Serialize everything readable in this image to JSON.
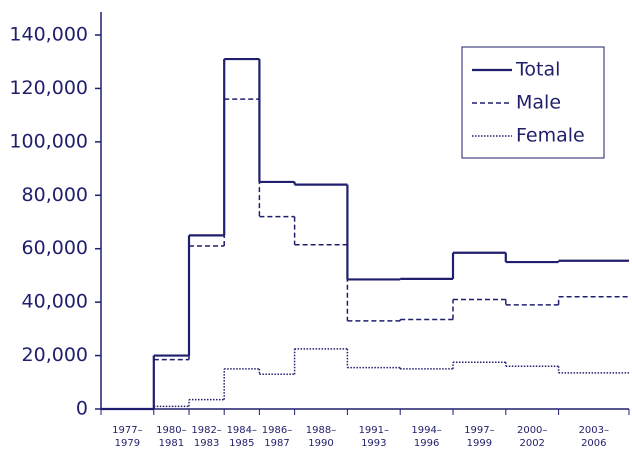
{
  "chart_data": {
    "type": "step",
    "categories": [
      "1977–1979",
      "1980–1981",
      "1982–1983",
      "1984–1985",
      "1986–1987",
      "1988–1990",
      "1991–1993",
      "1994–1996",
      "1997–1999",
      "2000–2002",
      "2003–2006"
    ],
    "bins": [
      1977,
      1980,
      1982,
      1984,
      1986,
      1988,
      1991,
      1994,
      1997,
      2000,
      2003,
      2007
    ],
    "xlim": [
      1977,
      2007
    ],
    "series": [
      {
        "name": "Total",
        "color": "#1f1f6e",
        "dash": "solid",
        "values": [
          0,
          20000,
          65000,
          131000,
          85000,
          84000,
          48500,
          48700,
          58500,
          55000,
          55500
        ]
      },
      {
        "name": "Male",
        "color": "#1f1f6e",
        "dash": "dashed",
        "values": [
          0,
          18500,
          61000,
          116000,
          72000,
          61500,
          33000,
          33500,
          41000,
          39000,
          42000
        ]
      },
      {
        "name": "Female",
        "color": "#1f1f6e",
        "dash": "dotted",
        "values": [
          0,
          1000,
          3500,
          15000,
          13000,
          22500,
          15500,
          15000,
          17500,
          16000,
          13500
        ]
      }
    ],
    "ylim": [
      0,
      140000
    ],
    "yticks": [
      0,
      {
        "value": 20000,
        "label": "20,000"
      },
      {
        "value": 40000,
        "label": "40,000"
      },
      {
        "value": 60000,
        "label": "60,000"
      },
      {
        "value": 80000,
        "label": "80,000"
      },
      {
        "value": 100000,
        "label": "100,000"
      },
      {
        "value": 120000,
        "label": "120,000"
      },
      {
        "value": 140000,
        "label": "140,000"
      }
    ],
    "legend": "upper right"
  }
}
